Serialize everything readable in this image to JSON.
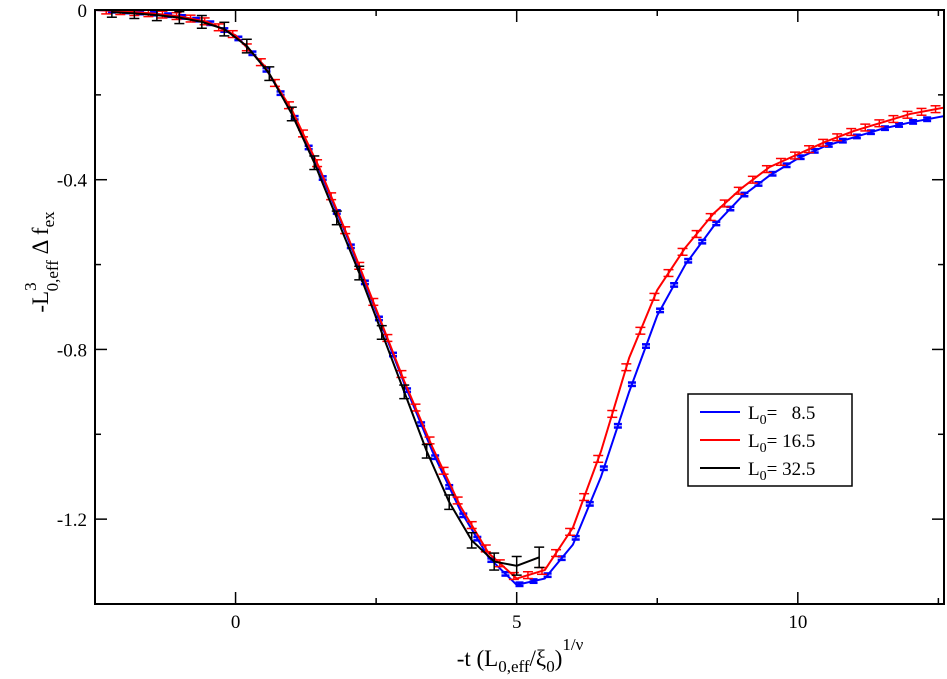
{
  "chart_data": {
    "type": "line",
    "title": "",
    "xlabel": {
      "prefix": "-t (L",
      "sub1": "0,eff",
      "mid": "/ξ",
      "sub2": "0",
      "close": ")",
      "sup": "1/ν"
    },
    "ylabel": {
      "minus": "-L",
      "sup": "3",
      "sub": "0,eff",
      "delta": " Δ f",
      "sub2": "ex"
    },
    "xlim": [
      -2.5,
      12.6
    ],
    "ylim": [
      -1.4,
      0.0
    ],
    "xticks": [
      0,
      5,
      10
    ],
    "xtick_labels": [
      "0",
      "5",
      "10"
    ],
    "yticks": [
      0,
      -0.4,
      -0.8,
      -1.2
    ],
    "ytick_labels": [
      "0",
      "-0.4",
      "-0.8",
      "-1.2"
    ],
    "legend_position": "center-right",
    "series": [
      {
        "name": "8.5",
        "legend_prefix": "L",
        "legend_sub": "0",
        "legend_eq": "=   ",
        "color": "#0000ff",
        "x": [
          -2.5,
          -2.0,
          -1.5,
          -1.0,
          -0.5,
          0.0,
          0.5,
          1.0,
          1.5,
          2.0,
          2.5,
          3.0,
          3.5,
          4.0,
          4.5,
          5.0,
          5.5,
          6.0,
          6.5,
          7.0,
          7.5,
          8.0,
          8.5,
          9.0,
          9.5,
          10.0,
          10.5,
          11.0,
          11.5,
          12.0,
          12.6
        ],
        "y": [
          0.0,
          -0.003,
          -0.008,
          -0.015,
          -0.028,
          -0.06,
          -0.13,
          -0.24,
          -0.38,
          -0.54,
          -0.71,
          -0.88,
          -1.04,
          -1.18,
          -1.29,
          -1.355,
          -1.34,
          -1.26,
          -1.1,
          -0.9,
          -0.72,
          -0.6,
          -0.51,
          -0.44,
          -0.39,
          -0.35,
          -0.32,
          -0.3,
          -0.28,
          -0.265,
          -0.25
        ]
      },
      {
        "name": "16.5",
        "legend_prefix": "L",
        "legend_sub": "0",
        "legend_eq": "= ",
        "color": "#ff0000",
        "x": [
          -2.5,
          -2.0,
          -1.5,
          -1.0,
          -0.5,
          0.0,
          0.5,
          1.0,
          1.5,
          2.0,
          2.5,
          3.0,
          3.5,
          4.0,
          4.5,
          5.0,
          5.5,
          6.0,
          6.5,
          7.0,
          7.5,
          8.0,
          8.5,
          9.0,
          9.5,
          10.0,
          10.5,
          11.0,
          11.5,
          12.0,
          12.6
        ],
        "y": [
          0.0,
          -0.003,
          -0.008,
          -0.015,
          -0.028,
          -0.06,
          -0.13,
          -0.235,
          -0.375,
          -0.535,
          -0.705,
          -0.875,
          -1.03,
          -1.17,
          -1.28,
          -1.34,
          -1.32,
          -1.22,
          -1.04,
          -0.82,
          -0.66,
          -0.56,
          -0.48,
          -0.42,
          -0.37,
          -0.34,
          -0.31,
          -0.285,
          -0.265,
          -0.245,
          -0.23
        ]
      },
      {
        "name": "32.5",
        "legend_prefix": "L",
        "legend_sub": "0",
        "legend_eq": "= ",
        "color": "#000000",
        "x": [
          -2.2,
          -1.8,
          -1.4,
          -1.0,
          -0.6,
          -0.2,
          0.2,
          0.6,
          1.0,
          1.4,
          1.8,
          2.2,
          2.6,
          3.0,
          3.4,
          3.8,
          4.2,
          4.6,
          5.0,
          5.4
        ],
        "y": [
          -0.005,
          -0.008,
          -0.012,
          -0.018,
          -0.028,
          -0.045,
          -0.085,
          -0.15,
          -0.245,
          -0.36,
          -0.49,
          -0.62,
          -0.76,
          -0.9,
          -1.04,
          -1.16,
          -1.25,
          -1.3,
          -1.31,
          -1.29
        ],
        "err": [
          0.012,
          0.012,
          0.013,
          0.014,
          0.015,
          0.016,
          0.016,
          0.016,
          0.016,
          0.016,
          0.016,
          0.016,
          0.016,
          0.016,
          0.016,
          0.017,
          0.018,
          0.02,
          0.022,
          0.024
        ]
      }
    ]
  }
}
